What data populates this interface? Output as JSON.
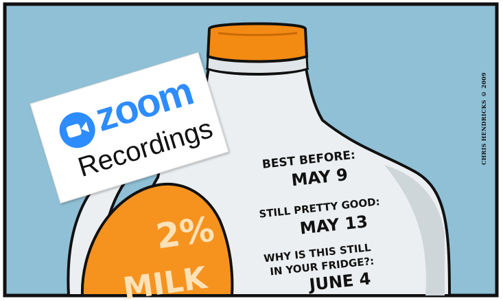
{
  "sticker": {
    "brand": "zoom",
    "subtitle": "Recordings",
    "brand_color": "#2d8cff",
    "icon": "video-camera-icon"
  },
  "label": {
    "line1": "BEST BEFORE:",
    "line2": "MAY 9",
    "line3": "STILL PRETTY GOOD:",
    "line4": "MAY 13",
    "line5": "WHY IS THIS STILL",
    "line6": "IN YOUR FRIDGE?:",
    "line7": "JUNE 4"
  },
  "carton": {
    "percent": "2%",
    "product": "MILK",
    "cap_color": "#f38a12",
    "label_color": "#f6931e"
  },
  "credit": "CHRIS HENDRICKS © 2009",
  "background_color": "#8fc0d6"
}
